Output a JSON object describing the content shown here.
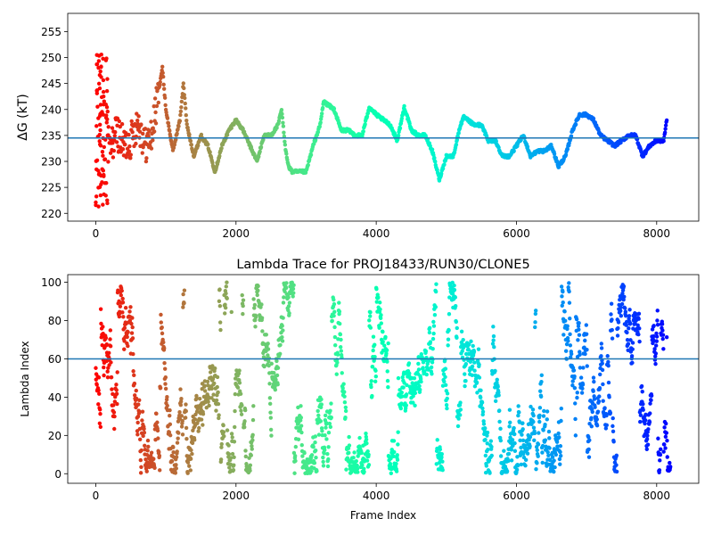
{
  "chart_data": [
    {
      "type": "scatter",
      "title": "",
      "xlabel": "",
      "ylabel": "ΔG (kT)",
      "xlim": [
        -400,
        8600
      ],
      "ylim": [
        218.5,
        258.5
      ],
      "xticks": [
        0,
        2000,
        4000,
        6000,
        8000
      ],
      "yticks": [
        220,
        225,
        230,
        235,
        240,
        245,
        250,
        255
      ],
      "hline": 234.5,
      "hline_color": "#1f77b4",
      "colormap": "rainbow (red at frame 0 → violet at last frame)",
      "n_frames": 8200,
      "grid": false,
      "series": [
        {
          "trace_points": [
            [
              0,
              220
            ],
            [
              20,
              250
            ],
            [
              40,
              222
            ],
            [
              60,
              235
            ],
            [
              80,
              248
            ],
            [
              100,
              225
            ],
            [
              150,
              240
            ],
            [
              200,
              232
            ],
            [
              300,
              236
            ],
            [
              400,
              233
            ],
            [
              500,
              234
            ],
            [
              600,
              238
            ],
            [
              700,
              233
            ],
            [
              800,
              235
            ],
            [
              900,
              244
            ],
            [
              950,
              248
            ],
            [
              1000,
              240
            ],
            [
              1100,
              232
            ],
            [
              1200,
              238
            ],
            [
              1250,
              245
            ],
            [
              1300,
              237
            ],
            [
              1400,
              231
            ],
            [
              1500,
              235
            ],
            [
              1600,
              233
            ],
            [
              1700,
              228
            ],
            [
              1800,
              233
            ],
            [
              1900,
              236
            ],
            [
              2000,
              238
            ],
            [
              2100,
              236
            ],
            [
              2200,
              233
            ],
            [
              2300,
              230
            ],
            [
              2400,
              235
            ],
            [
              2500,
              235
            ],
            [
              2600,
              237
            ],
            [
              2650,
              240
            ],
            [
              2700,
              233
            ],
            [
              2750,
              229
            ],
            [
              2800,
              228
            ],
            [
              3000,
              228
            ],
            [
              3100,
              233
            ],
            [
              3200,
              237
            ],
            [
              3250,
              241.5
            ],
            [
              3400,
              240
            ],
            [
              3500,
              236
            ],
            [
              3600,
              236
            ],
            [
              3700,
              235
            ],
            [
              3800,
              235
            ],
            [
              3900,
              240.5
            ],
            [
              4000,
              239
            ],
            [
              4100,
              238
            ],
            [
              4200,
              237
            ],
            [
              4300,
              234
            ],
            [
              4400,
              240.5
            ],
            [
              4500,
              236
            ],
            [
              4600,
              235
            ],
            [
              4700,
              235
            ],
            [
              4800,
              232
            ],
            [
              4900,
              226.5
            ],
            [
              5000,
              231
            ],
            [
              5100,
              231
            ],
            [
              5200,
              237
            ],
            [
              5250,
              238.5
            ],
            [
              5400,
              237
            ],
            [
              5500,
              237
            ],
            [
              5600,
              234
            ],
            [
              5700,
              234
            ],
            [
              5800,
              231
            ],
            [
              5900,
              231
            ],
            [
              6000,
              233
            ],
            [
              6100,
              235
            ],
            [
              6200,
              231
            ],
            [
              6300,
              232
            ],
            [
              6400,
              232
            ],
            [
              6500,
              233
            ],
            [
              6600,
              229
            ],
            [
              6700,
              231
            ],
            [
              6800,
              236
            ],
            [
              6900,
              239
            ],
            [
              7000,
              239
            ],
            [
              7100,
              238
            ],
            [
              7200,
              235
            ],
            [
              7300,
              234
            ],
            [
              7400,
              233
            ],
            [
              7500,
              234
            ],
            [
              7600,
              235
            ],
            [
              7700,
              235
            ],
            [
              7800,
              231
            ],
            [
              7900,
              233
            ],
            [
              8000,
              234
            ],
            [
              8100,
              234
            ],
            [
              8150,
              238.5
            ]
          ]
        }
      ]
    },
    {
      "type": "scatter",
      "title": "Lambda Trace for PROJ18433/RUN30/CLONE5",
      "xlabel": "Frame Index",
      "ylabel": "Lambda Index",
      "xlim": [
        -400,
        8600
      ],
      "ylim": [
        -5,
        104
      ],
      "xticks": [
        0,
        2000,
        4000,
        6000,
        8000
      ],
      "yticks": [
        0,
        20,
        40,
        60,
        80,
        100
      ],
      "hline": 60,
      "hline_color": "#1f77b4",
      "colormap": "rainbow (red at frame 0 → violet at last frame)",
      "n_frames": 8200,
      "value_range": [
        0,
        100
      ],
      "grid": false
    }
  ]
}
